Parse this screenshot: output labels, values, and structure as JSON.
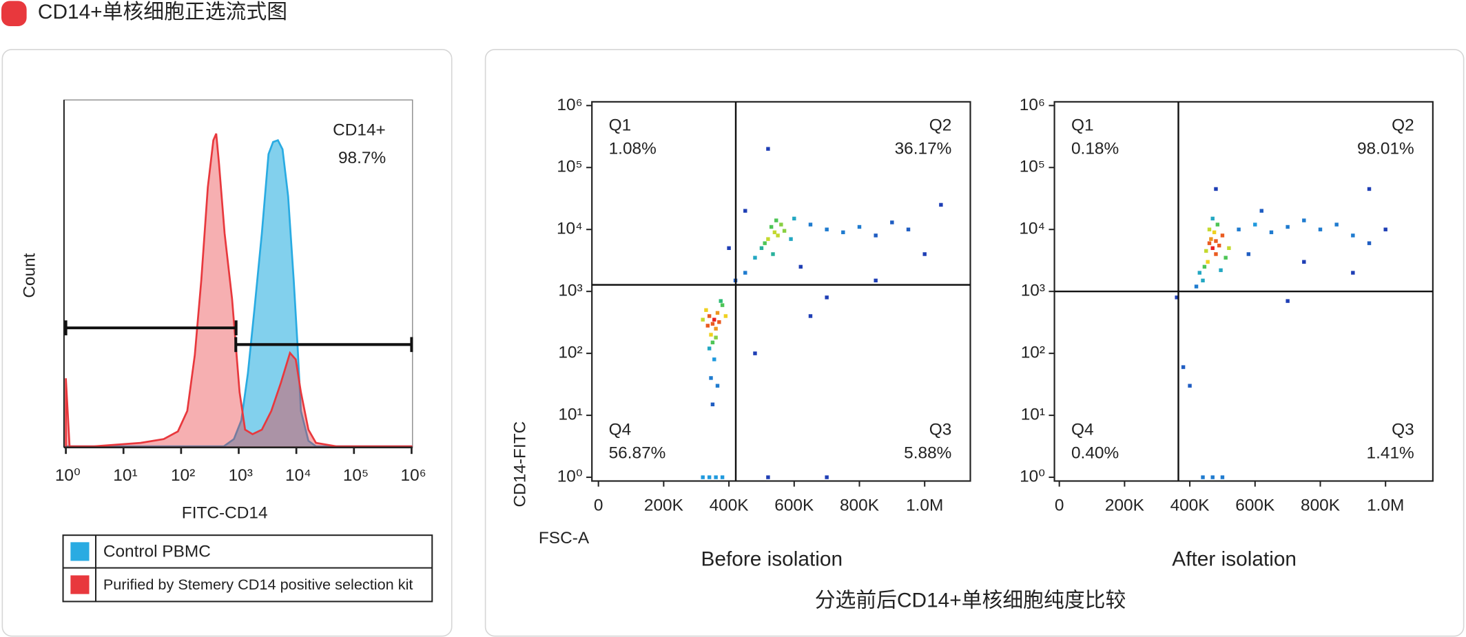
{
  "header": {
    "title": "CD14+单核细胞正选流式图"
  },
  "caption": "分选前后CD14+单核细胞纯度比较",
  "chart_data": [
    {
      "type": "histogram-overlay",
      "x_label": "FITC-CD14",
      "y_label": "Count",
      "log_x": true,
      "xlim": [
        1,
        1000000
      ],
      "xticks": [
        {
          "value": 1,
          "label": "10⁰"
        },
        {
          "value": 10,
          "label": "10¹"
        },
        {
          "value": 100,
          "label": "10²"
        },
        {
          "value": 1000,
          "label": "10³"
        },
        {
          "value": 10000,
          "label": "10⁴"
        },
        {
          "value": 100000,
          "label": "10⁵"
        },
        {
          "value": 1000000,
          "label": "10⁶"
        }
      ],
      "ylim": [
        0,
        100
      ],
      "series": [
        {
          "name": "Control PBMC",
          "color": "#29abe2",
          "fill": "#6cc8ea",
          "x": [
            1,
            551,
            826,
            1110,
            1440,
            1880,
            2520,
            3290,
            3950,
            4790,
            5760,
            7200,
            9010,
            10500,
            12000,
            16200,
            21900,
            1000000
          ],
          "values": [
            0.3,
            0.3,
            2.4,
            7.8,
            21.2,
            40,
            61.6,
            84.4,
            87.9,
            88.4,
            85.8,
            72.3,
            48.1,
            29.3,
            10.5,
            1.9,
            0.3,
            0.3
          ]
        },
        {
          "name": "Purified by Stemery CD14 positive selection kit",
          "color": "#e8383d",
          "fill": "#e8383d",
          "x": [
            1,
            1.16,
            3.1,
            19.8,
            50,
            88,
            128,
            173,
            224,
            291,
            363,
            407,
            455,
            569,
            767,
            1035,
            1290,
            1740,
            2520,
            3680,
            5370,
            7760,
            9770,
            12000,
            16200,
            21900,
            50100,
            1000000
          ],
          "values": [
            19.9,
            0.3,
            0.3,
            1.3,
            2.4,
            4.6,
            10.5,
            26.6,
            48.1,
            74.9,
            88.4,
            90.3,
            81.7,
            61.6,
            42.7,
            15.9,
            5.1,
            3.8,
            5.1,
            10.5,
            18.5,
            27.2,
            25.3,
            15.9,
            5.1,
            1.3,
            0.3,
            0.3
          ]
        }
      ],
      "gates": [
        {
          "x": [
            1,
            900
          ],
          "y": 34.4
        },
        {
          "x": [
            890,
            1000000
          ],
          "y": 29.6
        }
      ],
      "annotations": [
        "CD14+",
        "98.7%"
      ]
    },
    {
      "type": "scatter-density",
      "subtitle": "Before isolation",
      "x_label": "FSC-A",
      "y_label": "CD14-FITC",
      "log_y": true,
      "xlim": [
        -20000,
        1140000
      ],
      "xticks": [
        0,
        {
          "value": 200000,
          "label": "200K"
        },
        {
          "value": 400000,
          "label": "400K"
        },
        {
          "value": 600000,
          "label": "600K"
        },
        {
          "value": 800000,
          "label": "800K"
        },
        {
          "value": 1000000,
          "label": "1.0M"
        }
      ],
      "ylim": [
        0.87,
        1150000
      ],
      "yticks": [
        {
          "value": 1,
          "label": "10⁰"
        },
        {
          "value": 10,
          "label": "10¹"
        },
        {
          "value": 100,
          "label": "10²"
        },
        {
          "value": 1000,
          "label": "10³"
        },
        {
          "value": 10000,
          "label": "10⁴"
        },
        {
          "value": 100000,
          "label": "10⁵"
        },
        {
          "value": 1000000,
          "label": "10⁶"
        }
      ],
      "gate": {
        "x": 421000,
        "y": 1277
      },
      "quadrants": {
        "names": [
          "Q1",
          "Q2",
          "Q3",
          "Q4"
        ],
        "values": [
          1.08,
          36.17,
          5.88,
          56.87
        ],
        "value_labels": [
          "1.08%",
          "36.17%",
          "5.88%",
          "56.87%"
        ]
      },
      "x": [
        350000,
        340000,
        360000,
        355000,
        345000,
        365000,
        335000,
        370000,
        350000,
        330000,
        380000,
        360000,
        340000,
        355000,
        345000,
        365000,
        350000,
        375000,
        320000,
        390000,
        540000,
        530000,
        550000,
        520000,
        560000,
        510000,
        545000,
        500000,
        570000,
        535000,
        480000,
        590000,
        450000,
        420000,
        600000,
        650000,
        700000,
        750000,
        800000,
        850000,
        900000,
        950000,
        1050000,
        1000000,
        620000,
        700000,
        850000,
        520000,
        400000,
        450000,
        650000,
        480000,
        340000,
        360000,
        380000,
        320000,
        520000,
        700000
      ],
      "y": [
        300,
        400,
        250,
        350,
        200,
        450,
        280,
        320,
        150,
        500,
        600,
        180,
        120,
        80,
        40,
        30,
        15,
        700,
        350,
        400,
        9000,
        11000,
        8000,
        7000,
        12000,
        6000,
        14000,
        5000,
        9500,
        4000,
        3500,
        7000,
        2000,
        1500,
        15000,
        12000,
        10000,
        9000,
        11000,
        8000,
        13000,
        10000,
        25000,
        4000,
        2500,
        800,
        1500,
        200000,
        5000,
        20000,
        400,
        100,
        1,
        1,
        1,
        1,
        1,
        1
      ]
    },
    {
      "type": "scatter-density",
      "subtitle": "After isolation",
      "log_y": true,
      "xlim": [
        -15000,
        1145000
      ],
      "xticks": [
        0,
        {
          "value": 200000,
          "label": "200K"
        },
        {
          "value": 400000,
          "label": "400K"
        },
        {
          "value": 600000,
          "label": "600K"
        },
        {
          "value": 800000,
          "label": "800K"
        },
        {
          "value": 1000000,
          "label": "1.0M"
        }
      ],
      "ylim": [
        0.87,
        1150000
      ],
      "yticks": [
        {
          "value": 1,
          "label": "10⁰"
        },
        {
          "value": 10,
          "label": "10¹"
        },
        {
          "value": 100,
          "label": "10²"
        },
        {
          "value": 1000,
          "label": "10³"
        },
        {
          "value": 10000,
          "label": "10⁴"
        },
        {
          "value": 100000,
          "label": "10⁵"
        },
        {
          "value": 1000000,
          "label": "10⁶"
        }
      ],
      "gate": {
        "x": 365000,
        "y": 1000
      },
      "quadrants": {
        "names": [
          "Q1",
          "Q2",
          "Q3",
          "Q4"
        ],
        "values": [
          0.18,
          98.01,
          1.41,
          0.4
        ],
        "value_labels": [
          "0.18%",
          "98.01%",
          "1.41%",
          "0.40%"
        ]
      },
      "x": [
        470000,
        460000,
        480000,
        465000,
        455000,
        475000,
        490000,
        445000,
        485000,
        450000,
        500000,
        430000,
        510000,
        470000,
        440000,
        495000,
        460000,
        480000,
        520000,
        420000,
        550000,
        600000,
        650000,
        700000,
        750000,
        800000,
        850000,
        900000,
        950000,
        1000000,
        580000,
        620000,
        750000,
        900000,
        700000,
        950000,
        480000,
        360000,
        380000,
        400000,
        470000,
        500000,
        440000
      ],
      "y": [
        5000,
        6000,
        4000,
        7000,
        3000,
        9000,
        5500,
        2500,
        12000,
        4500,
        8000,
        2000,
        3500,
        15000,
        1500,
        2200,
        10000,
        6500,
        5000,
        1200,
        10000,
        12000,
        9000,
        11000,
        14000,
        10000,
        12000,
        8000,
        6000,
        10000,
        4000,
        20000,
        3000,
        2000,
        700,
        45000,
        45000,
        800,
        60,
        30,
        1,
        1,
        1
      ]
    }
  ]
}
